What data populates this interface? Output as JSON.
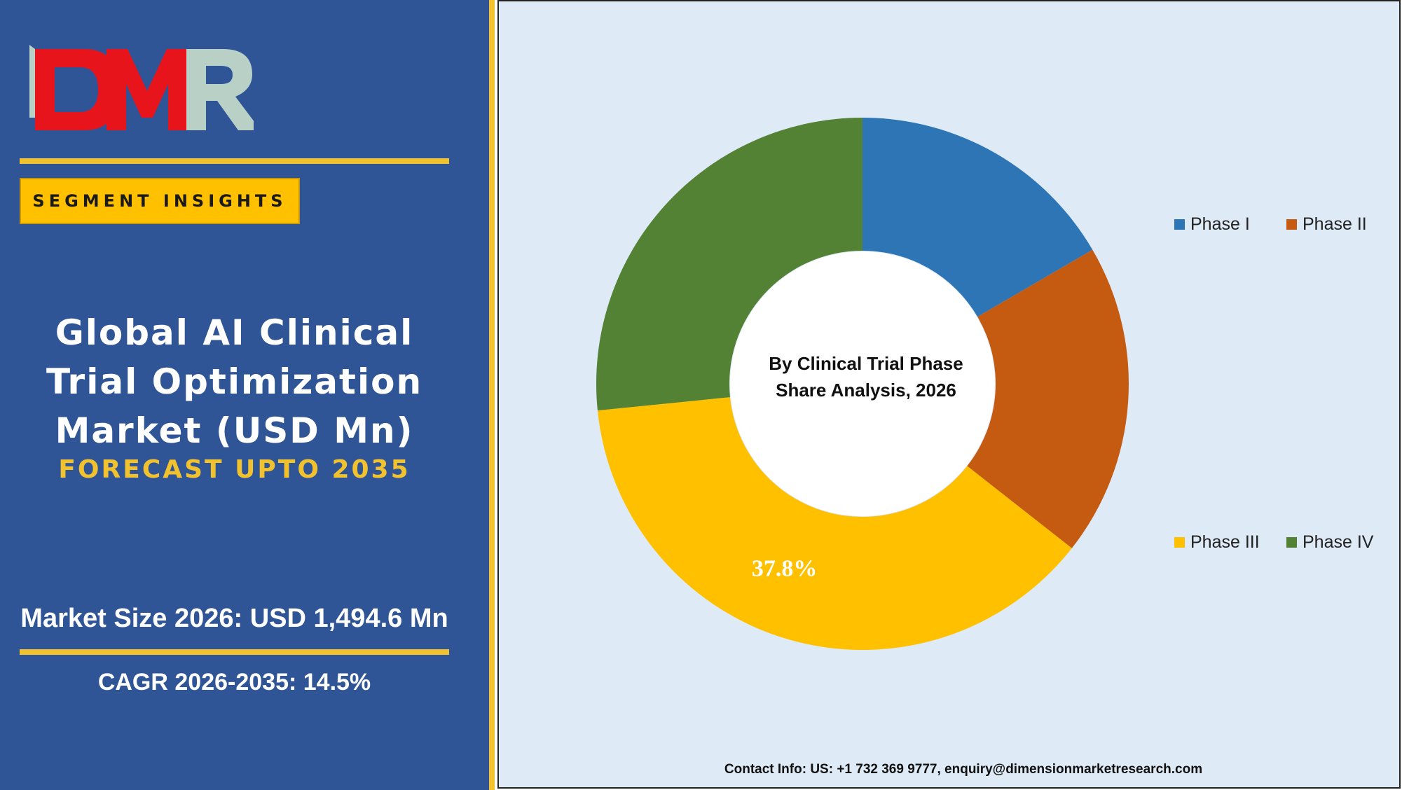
{
  "logo": {
    "text": "DMR"
  },
  "sidebar": {
    "badge": "SEGMENT INSIGHTS",
    "title_lines": [
      "Global AI Clinical",
      "Trial Optimization",
      "Market (USD Mn)"
    ],
    "forecast": "FORECAST UPTO 2035",
    "market_size": "Market Size 2026: USD 1,494.6 Mn",
    "cagr": "CAGR 2026-2035: 14.5%"
  },
  "colors": {
    "panel_bg": "#2f5597",
    "accent_gold": "#f2c12e",
    "chart_bg": "#deeaf6"
  },
  "chart_data": {
    "type": "pie",
    "donut": true,
    "title_lines": [
      "By Clinical Trial Phase",
      "Share Analysis, 2026"
    ],
    "categories": [
      "Phase I",
      "Phase II",
      "Phase III",
      "Phase IV"
    ],
    "values": [
      16.6,
      19.0,
      37.8,
      26.6
    ],
    "colors": [
      "#2e75b6",
      "#c55a11",
      "#ffc000",
      "#548235"
    ],
    "data_labels": [
      {
        "category": "Phase III",
        "text": "37.8%"
      }
    ],
    "legend_placement": "right"
  },
  "footer": {
    "contact": "Contact Info: US: +1 732 369 9777, enquiry@dimensionmarketresearch.com"
  }
}
